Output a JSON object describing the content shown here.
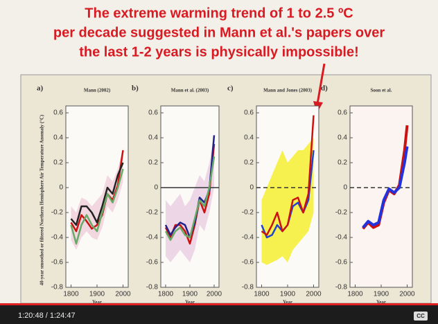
{
  "headline": [
    "The extreme warming trend of 1 to 2.5 ºC",
    "per decade suggested in Mann et al.'s papers over",
    "the last 1-2 years is physically impossible!"
  ],
  "player": {
    "time": "1:20:48 / 1:24:47",
    "cc": "CC"
  },
  "chart_data": [
    {
      "type": "line",
      "label": "a)",
      "title": "Mann (2002)",
      "xlabel": "Year",
      "ylabel": "40-year smoothed or filtered Northern Hemisphere Air Temperature Anomaly (°C)",
      "xlim": [
        1780,
        2020
      ],
      "ylim": [
        -0.8,
        0.6
      ],
      "xticks": [
        1800,
        1900,
        2000
      ],
      "yticks": [
        0.6,
        0.4,
        0.2,
        0,
        -0.2,
        -0.4,
        -0.6,
        -0.8
      ],
      "x": [
        1800,
        1820,
        1840,
        1860,
        1880,
        1900,
        1920,
        1940,
        1960,
        1980,
        2000
      ],
      "band": {
        "color": "#f0d0dc",
        "lower": [
          -0.42,
          -0.5,
          -0.4,
          -0.35,
          -0.4,
          -0.42,
          -0.32,
          -0.15,
          -0.2,
          -0.1,
          0.05
        ],
        "upper": [
          -0.15,
          -0.2,
          -0.08,
          -0.1,
          -0.15,
          -0.1,
          -0.05,
          0.1,
          0.05,
          0.15,
          0.32
        ]
      },
      "series": [
        {
          "color": "#cc1111",
          "values": [
            -0.28,
            -0.35,
            -0.22,
            -0.27,
            -0.33,
            -0.3,
            -0.22,
            -0.05,
            -0.1,
            0.02,
            0.3
          ]
        },
        {
          "color": "#222222",
          "values": [
            -0.25,
            -0.3,
            -0.15,
            -0.15,
            -0.2,
            -0.28,
            -0.15,
            0.0,
            -0.05,
            0.1,
            0.2
          ]
        },
        {
          "color": "#66aa66",
          "values": [
            -0.3,
            -0.45,
            -0.3,
            -0.22,
            -0.3,
            -0.35,
            -0.2,
            -0.05,
            -0.12,
            0.0,
            0.15
          ]
        }
      ]
    },
    {
      "type": "line",
      "label": "b)",
      "title": "Mann et al. (2003)",
      "xlabel": "Year",
      "zero_line": "solid",
      "xlim": [
        1780,
        2020
      ],
      "ylim": [
        -0.8,
        0.6
      ],
      "xticks": [
        1800,
        1900,
        2000
      ],
      "yticks": [
        0.6,
        0.4,
        0.2,
        0,
        -0.2,
        -0.4,
        -0.6,
        -0.8
      ],
      "x": [
        1800,
        1820,
        1840,
        1860,
        1880,
        1900,
        1920,
        1940,
        1960,
        1980,
        2000
      ],
      "band": {
        "color": "#ead0e4",
        "lower": [
          -0.55,
          -0.6,
          -0.55,
          -0.5,
          -0.55,
          -0.6,
          -0.5,
          -0.3,
          -0.35,
          -0.2,
          0.0
        ],
        "upper": [
          -0.1,
          -0.15,
          -0.1,
          -0.05,
          -0.15,
          -0.1,
          0.0,
          0.1,
          0.05,
          0.2,
          0.42
        ]
      },
      "series": [
        {
          "color": "#cc1111",
          "values": [
            -0.32,
            -0.4,
            -0.3,
            -0.3,
            -0.35,
            -0.45,
            -0.3,
            -0.1,
            -0.2,
            -0.05,
            0.35
          ]
        },
        {
          "color": "#222288",
          "values": [
            -0.3,
            -0.38,
            -0.32,
            -0.28,
            -0.3,
            -0.4,
            -0.28,
            -0.08,
            -0.12,
            -0.02,
            0.42
          ]
        },
        {
          "color": "#66aa66",
          "values": [
            -0.35,
            -0.42,
            -0.35,
            -0.32,
            -0.38,
            -0.4,
            -0.25,
            -0.1,
            -0.15,
            0.0,
            0.25
          ]
        }
      ]
    },
    {
      "type": "line",
      "label": "c)",
      "title": "Mann and Jones (2003)",
      "xlabel": "Year",
      "zero_line": "dashed",
      "xlim": [
        1780,
        2020
      ],
      "ylim": [
        -0.8,
        0.6
      ],
      "xticks": [
        1800,
        1900,
        2000
      ],
      "yticks": [
        0.6,
        0.4,
        0.2,
        0,
        -0.2,
        -0.4,
        -0.6,
        -0.8
      ],
      "x": [
        1800,
        1820,
        1840,
        1860,
        1880,
        1900,
        1920,
        1940,
        1960,
        1980,
        2000
      ],
      "band": {
        "color": "#f4ee30",
        "lower": [
          -0.6,
          -0.62,
          -0.6,
          -0.58,
          -0.55,
          -0.6,
          -0.5,
          -0.45,
          -0.4,
          -0.35,
          -0.2
        ],
        "upper": [
          -0.1,
          0.0,
          0.1,
          0.2,
          0.3,
          0.2,
          0.25,
          0.3,
          0.3,
          0.35,
          0.4
        ]
      },
      "series": [
        {
          "color": "#2244cc",
          "values": [
            -0.3,
            -0.4,
            -0.38,
            -0.3,
            -0.35,
            -0.3,
            -0.15,
            -0.12,
            -0.2,
            -0.1,
            0.3
          ]
        },
        {
          "color": "#cc1111",
          "values": [
            -0.35,
            -0.38,
            -0.3,
            -0.2,
            -0.35,
            -0.3,
            -0.1,
            -0.08,
            -0.2,
            -0.05,
            0.58
          ]
        }
      ]
    },
    {
      "type": "line",
      "label": "d)",
      "title": "Soon et al.",
      "xlabel": "Year",
      "zero_line": "dashed",
      "xlim": [
        1780,
        2020
      ],
      "ylim": [
        -0.8,
        0.6
      ],
      "xticks": [
        1800,
        1900,
        2000
      ],
      "yticks": [
        0.6,
        0.4,
        0.2,
        0,
        -0.2,
        -0.4,
        -0.6,
        -0.8
      ],
      "x": [
        1830,
        1850,
        1870,
        1890,
        1910,
        1930,
        1950,
        1970,
        1990,
        2000
      ],
      "series": [
        {
          "color": "#cc1111",
          "values": [
            -0.33,
            -0.28,
            -0.32,
            -0.3,
            -0.12,
            -0.02,
            -0.05,
            0.02,
            0.3,
            0.5
          ]
        },
        {
          "color": "#2233dd",
          "values": [
            -0.32,
            -0.27,
            -0.3,
            -0.28,
            -0.1,
            -0.01,
            -0.04,
            0.0,
            0.2,
            0.33
          ]
        }
      ]
    }
  ]
}
